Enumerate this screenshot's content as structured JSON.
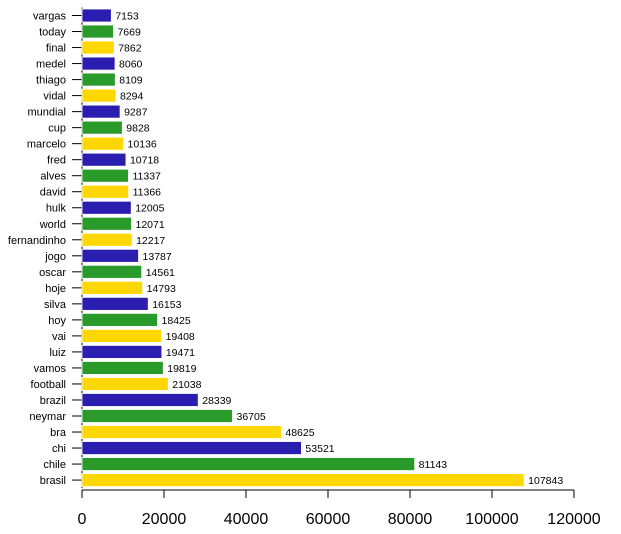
{
  "chart_data": {
    "type": "bar",
    "orientation": "horizontal",
    "title": "",
    "xlabel": "",
    "ylabel": "",
    "xlim": [
      0,
      120000
    ],
    "xticks": [
      0,
      20000,
      40000,
      60000,
      80000,
      100000,
      120000
    ],
    "grid": false,
    "categories": [
      "vargas",
      "today",
      "final",
      "medel",
      "thiago",
      "vidal",
      "mundial",
      "cup",
      "marcelo",
      "fred",
      "alves",
      "david",
      "hulk",
      "world",
      "fernandinho",
      "jogo",
      "oscar",
      "hoje",
      "silva",
      "hoy",
      "vai",
      "luiz",
      "vamos",
      "football",
      "brazil",
      "neymar",
      "bra",
      "chi",
      "chile",
      "brasil"
    ],
    "values": [
      7153,
      7669,
      7862,
      8060,
      8109,
      8294,
      9287,
      9828,
      10136,
      10718,
      11337,
      11366,
      12005,
      12071,
      12217,
      13787,
      14561,
      14793,
      16153,
      18425,
      19408,
      19471,
      19819,
      21038,
      28339,
      36705,
      48625,
      53521,
      81143,
      107843
    ],
    "colors": [
      "#2a1db0",
      "#2a9a2a",
      "#ffd700"
    ]
  }
}
